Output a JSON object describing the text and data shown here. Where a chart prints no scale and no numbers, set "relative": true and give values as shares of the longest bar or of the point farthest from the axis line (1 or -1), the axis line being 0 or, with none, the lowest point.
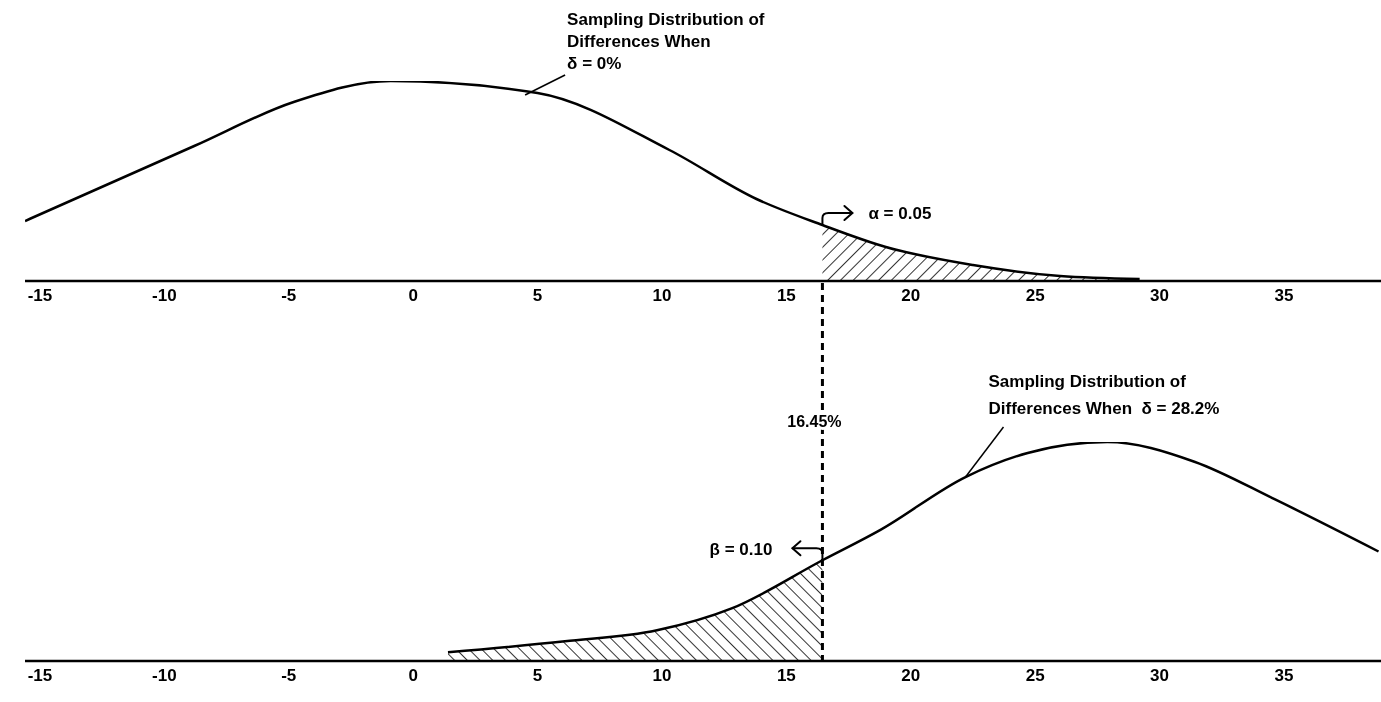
{
  "chart_data": [
    {
      "type": "line",
      "relative": true,
      "xlim": [
        -15.6,
        38.9
      ],
      "xticks": [
        -15,
        -10,
        -5,
        0,
        5,
        10,
        15,
        20,
        25,
        30,
        35
      ],
      "marker": "none",
      "line_style": "solid",
      "series": [
        {
          "color": "#000000",
          "x": [
            -15.6,
            -8.8,
            -4.8,
            -0.9,
            5.0,
            10.3,
            13.8,
            16.45,
            19.0,
            22.5,
            26.0,
            29.2
          ],
          "values": [
            0.3,
            0.675,
            0.895,
            1.0,
            0.94,
            0.655,
            0.41,
            0.28,
            0.17,
            0.08,
            0.025,
            0.01
          ]
        },
        {
          "type": "area",
          "color": "#000000",
          "x": [
            16.45,
            19.0,
            22.5,
            26.0,
            29.2
          ],
          "values": [
            0.28,
            0.17,
            0.08,
            0.025,
            0.01
          ]
        }
      ],
      "annotations": [
        {
          "text": "Sampling Distribution of\nDifferences When\nδ = 0%",
          "x": 4.5,
          "y": 0.93
        },
        {
          "text": "α = 0.05",
          "x": 16.45,
          "y": 0.28
        }
      ]
    },
    {
      "type": "line",
      "relative": true,
      "xlim": [
        -15.6,
        38.9
      ],
      "xticks": [
        -15,
        -10,
        -5,
        0,
        5,
        10,
        15,
        20,
        25,
        30,
        35
      ],
      "marker": "none",
      "line_style": "solid",
      "series": [
        {
          "color": "#000000",
          "x": [
            1.4,
            6.1,
            9.8,
            12.8,
            16.45,
            18.8,
            22.2,
            24.7,
            27.9,
            31.4,
            34.6,
            38.8
          ],
          "values": [
            0.04,
            0.09,
            0.14,
            0.24,
            0.46,
            0.6,
            0.84,
            0.95,
            1.0,
            0.91,
            0.74,
            0.5
          ]
        },
        {
          "type": "area",
          "color": "#000000",
          "x": [
            1.4,
            6.1,
            9.8,
            12.8,
            16.45
          ],
          "values": [
            0.04,
            0.09,
            0.14,
            0.24,
            0.46
          ]
        }
      ],
      "ref_lines": [
        {
          "axis": "x",
          "value": 16.45,
          "label": "16.45%",
          "line_style": "dashed"
        }
      ],
      "annotations": [
        {
          "text": "Sampling Distribution of\nDifferences When  δ = 28.2%",
          "x": 22.2,
          "y": 0.84
        },
        {
          "text": "β = 0.10",
          "x": 16.45,
          "y": 0.46
        }
      ]
    }
  ]
}
